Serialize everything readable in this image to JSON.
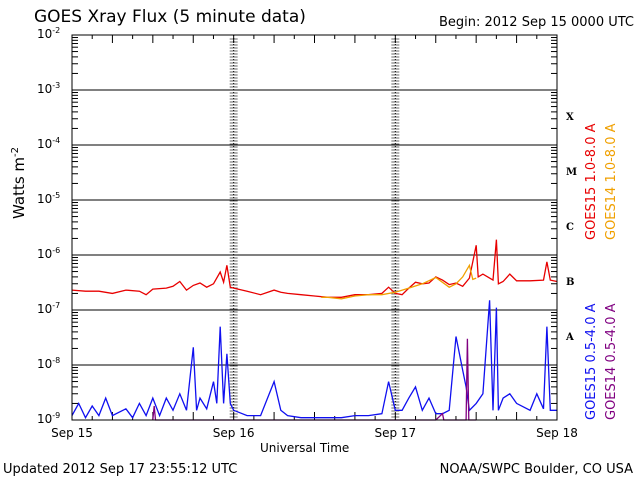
{
  "header": {
    "title": "GOES Xray Flux (5 minute data)",
    "begin": "Begin:  2012 Sep 15 0000 UTC"
  },
  "footer": {
    "updated": "Updated 2012 Sep 17 23:55:12 UTC",
    "credit": "NOAA/SWPC Boulder, CO USA"
  },
  "chart_data": {
    "type": "line",
    "title": "GOES Xray Flux (5 minute data)",
    "xlabel": "Universal Time",
    "ylabel": "Watts m",
    "ylabel_sup": "-2",
    "xlim": [
      0,
      72
    ],
    "xlim_units": "hours from 2012 Sep 15 0000 UTC",
    "x_ticks": [
      {
        "x": 0,
        "label": "Sep 15"
      },
      {
        "x": 24,
        "label": "Sep 16"
      },
      {
        "x": 48,
        "label": "Sep 17"
      },
      {
        "x": 72,
        "label": "Sep 18"
      }
    ],
    "y_scale": "log",
    "ylim": [
      1e-09,
      0.01
    ],
    "y_ticks": [
      {
        "value": 0.01,
        "label": "10",
        "exp": "-2"
      },
      {
        "value": 0.001,
        "label": "10",
        "exp": "-3"
      },
      {
        "value": 0.0001,
        "label": "10",
        "exp": "-4"
      },
      {
        "value": 1e-05,
        "label": "10",
        "exp": "-5"
      },
      {
        "value": 1e-06,
        "label": "10",
        "exp": "-6"
      },
      {
        "value": 1e-07,
        "label": "10",
        "exp": "-7"
      },
      {
        "value": 1e-08,
        "label": "10",
        "exp": "-8"
      },
      {
        "value": 1e-09,
        "label": "10",
        "exp": "-9"
      }
    ],
    "flare_classes": [
      {
        "label": "X",
        "value": 0.0003
      },
      {
        "label": "M",
        "value": 3e-05
      },
      {
        "label": "C",
        "value": 3e-06
      },
      {
        "label": "B",
        "value": 3e-07
      },
      {
        "label": "A",
        "value": 3e-08
      }
    ],
    "grid": true,
    "series": [
      {
        "name": "GOES15 1.0-8.0 A",
        "color": "#e80000",
        "points": [
          [
            0,
            2.3e-07
          ],
          [
            2,
            2.2e-07
          ],
          [
            4,
            2.2e-07
          ],
          [
            6,
            2e-07
          ],
          [
            8,
            2.3e-07
          ],
          [
            10,
            2.2e-07
          ],
          [
            11,
            1.9e-07
          ],
          [
            12,
            2.4e-07
          ],
          [
            14,
            2.5e-07
          ],
          [
            15,
            2.7e-07
          ],
          [
            16,
            3.3e-07
          ],
          [
            17,
            2.3e-07
          ],
          [
            18,
            2.8e-07
          ],
          [
            19,
            3.1e-07
          ],
          [
            20,
            2.6e-07
          ],
          [
            21,
            3e-07
          ],
          [
            22,
            4.9e-07
          ],
          [
            22.5,
            3.2e-07
          ],
          [
            23,
            6.5e-07
          ],
          [
            23.5,
            2.6e-07
          ],
          [
            24,
            2.5e-07
          ],
          [
            26,
            2.2e-07
          ],
          [
            28,
            1.9e-07
          ],
          [
            30,
            2.3e-07
          ],
          [
            31,
            2.1e-07
          ],
          [
            32,
            2e-07
          ],
          [
            34,
            1.9e-07
          ],
          [
            36,
            1.8e-07
          ],
          [
            38,
            1.7e-07
          ],
          [
            40,
            1.7e-07
          ],
          [
            42,
            1.9e-07
          ],
          [
            44,
            1.9e-07
          ],
          [
            46,
            2e-07
          ],
          [
            47,
            2.6e-07
          ],
          [
            48,
            2e-07
          ],
          [
            49,
            1.9e-07
          ],
          [
            50,
            2.5e-07
          ],
          [
            51,
            3.2e-07
          ],
          [
            52,
            3e-07
          ],
          [
            53,
            3.1e-07
          ],
          [
            54,
            4e-07
          ],
          [
            55,
            3.5e-07
          ],
          [
            56,
            2.9e-07
          ],
          [
            57,
            3.1e-07
          ],
          [
            58,
            2.7e-07
          ],
          [
            59,
            3.8e-07
          ],
          [
            60,
            1.5e-06
          ],
          [
            60.3,
            4e-07
          ],
          [
            61,
            4.5e-07
          ],
          [
            62,
            3.8e-07
          ],
          [
            62.5,
            3.5e-07
          ],
          [
            63,
            1.9e-06
          ],
          [
            63.3,
            3e-07
          ],
          [
            64,
            3.3e-07
          ],
          [
            65,
            4.5e-07
          ],
          [
            66,
            3.4e-07
          ],
          [
            68,
            3.4e-07
          ],
          [
            70,
            3.5e-07
          ],
          [
            70.5,
            7.5e-07
          ],
          [
            71,
            3.5e-07
          ],
          [
            72,
            3.3e-07
          ]
        ]
      },
      {
        "name": "GOES14 1.0-8.0 A",
        "color": "#f0a000",
        "points": [
          [
            37,
            1.7e-07
          ],
          [
            38,
            1.7e-07
          ],
          [
            40,
            1.6e-07
          ],
          [
            42,
            1.8e-07
          ],
          [
            44,
            1.9e-07
          ],
          [
            46,
            1.9e-07
          ],
          [
            48,
            2.1e-07
          ],
          [
            50,
            2.5e-07
          ],
          [
            52,
            3e-07
          ],
          [
            54,
            3.9e-07
          ],
          [
            56,
            2.6e-07
          ],
          [
            57,
            3e-07
          ],
          [
            58,
            4e-07
          ],
          [
            59,
            6.5e-07
          ],
          [
            59.5,
            3.6e-07
          ],
          [
            60,
            3.8e-07
          ]
        ]
      },
      {
        "name": "GOES15 0.5-4.0 A",
        "color": "#1010f0",
        "points": [
          [
            0,
            1.2e-09
          ],
          [
            1,
            2e-09
          ],
          [
            2,
            1.1e-09
          ],
          [
            3,
            1.8e-09
          ],
          [
            4,
            1.2e-09
          ],
          [
            5,
            2.5e-09
          ],
          [
            6,
            1.2e-09
          ],
          [
            8,
            1.6e-09
          ],
          [
            9,
            1.1e-09
          ],
          [
            10,
            2e-09
          ],
          [
            11,
            1.2e-09
          ],
          [
            12,
            2.5e-09
          ],
          [
            13,
            1.2e-09
          ],
          [
            14,
            2.5e-09
          ],
          [
            15,
            1.5e-09
          ],
          [
            16,
            3e-09
          ],
          [
            17,
            1.5e-09
          ],
          [
            18,
            2.1e-08
          ],
          [
            18.5,
            1.5e-09
          ],
          [
            19,
            2.5e-09
          ],
          [
            20,
            1.6e-09
          ],
          [
            21,
            5e-09
          ],
          [
            21.5,
            2e-09
          ],
          [
            22,
            5e-08
          ],
          [
            22.5,
            2e-09
          ],
          [
            23,
            1.6e-08
          ],
          [
            23.5,
            2e-09
          ],
          [
            24,
            1.5e-09
          ],
          [
            26,
            1.2e-09
          ],
          [
            28,
            1.2e-09
          ],
          [
            30,
            5e-09
          ],
          [
            31,
            1.5e-09
          ],
          [
            32,
            1.2e-09
          ],
          [
            34,
            1.1e-09
          ],
          [
            36,
            1.1e-09
          ],
          [
            38,
            1.1e-09
          ],
          [
            40,
            1.1e-09
          ],
          [
            42,
            1.2e-09
          ],
          [
            44,
            1.2e-09
          ],
          [
            46,
            1.3e-09
          ],
          [
            47,
            5e-09
          ],
          [
            48,
            1.5e-09
          ],
          [
            49,
            1.5e-09
          ],
          [
            50,
            2.5e-09
          ],
          [
            51,
            4e-09
          ],
          [
            52,
            1.5e-09
          ],
          [
            53,
            2.5e-09
          ],
          [
            54,
            1.3e-09
          ],
          [
            55,
            1.3e-09
          ],
          [
            56,
            1.5e-09
          ],
          [
            57,
            3.3e-08
          ],
          [
            58,
            8e-09
          ],
          [
            58.5,
            4e-09
          ],
          [
            59,
            1.5e-09
          ],
          [
            60,
            2e-09
          ],
          [
            61,
            3e-09
          ],
          [
            62,
            1.5e-07
          ],
          [
            62.5,
            1.5e-09
          ],
          [
            63,
            1.1e-07
          ],
          [
            63.3,
            1.5e-09
          ],
          [
            64,
            2.5e-09
          ],
          [
            65,
            3e-09
          ],
          [
            66,
            2e-09
          ],
          [
            68,
            1.5e-09
          ],
          [
            69,
            3e-09
          ],
          [
            70,
            1.6e-09
          ],
          [
            70.5,
            5e-08
          ],
          [
            71,
            1.5e-09
          ],
          [
            72,
            1.5e-09
          ]
        ]
      },
      {
        "name": "GOES14 0.5-4.0 A",
        "color": "#800080",
        "points": [
          [
            12,
            1e-09
          ],
          [
            12.2,
            1.8e-09
          ],
          [
            12.4,
            1e-09
          ],
          [
            45,
            1e-09
          ],
          [
            54,
            1e-09
          ],
          [
            55,
            1.3e-09
          ],
          [
            55.2,
            1e-09
          ],
          [
            58.5,
            1e-09
          ],
          [
            58.7,
            3e-08
          ],
          [
            58.9,
            1e-09
          ],
          [
            60,
            1e-09
          ]
        ]
      }
    ]
  }
}
